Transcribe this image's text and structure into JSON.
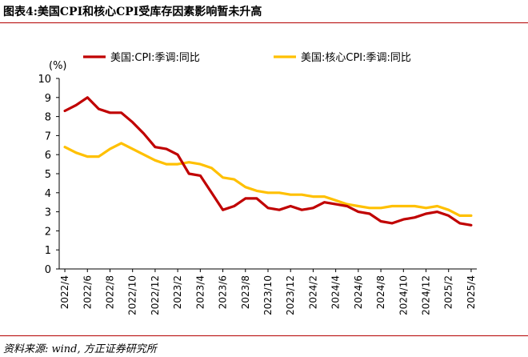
{
  "figure": {
    "title": "图表4:美国CPI和核心CPI受库存因素影响暂未升高",
    "source": "资料来源: wind, 方正证券研究所"
  },
  "chart_data": {
    "type": "line",
    "unit_label": "(%)",
    "ylim": [
      0,
      10
    ],
    "yticks": [
      0,
      1,
      2,
      3,
      4,
      5,
      6,
      7,
      8,
      9,
      10
    ],
    "grid": false,
    "legend_position": "top",
    "x": [
      "2022/4",
      "2022/5",
      "2022/6",
      "2022/7",
      "2022/8",
      "2022/9",
      "2022/10",
      "2022/11",
      "2022/12",
      "2023/1",
      "2023/2",
      "2023/3",
      "2023/4",
      "2023/5",
      "2023/6",
      "2023/7",
      "2023/8",
      "2023/9",
      "2023/10",
      "2023/11",
      "2023/12",
      "2024/1",
      "2024/2",
      "2024/3",
      "2024/4",
      "2024/5",
      "2024/6",
      "2024/7",
      "2024/8",
      "2024/9",
      "2024/10",
      "2024/11",
      "2024/12",
      "2025/1",
      "2025/2",
      "2025/3",
      "2025/4"
    ],
    "xtick_labels": [
      "2022/4",
      "2022/6",
      "2022/8",
      "2022/10",
      "2022/12",
      "2023/2",
      "2023/4",
      "2023/6",
      "2023/8",
      "2023/10",
      "2023/12",
      "2024/2",
      "2024/4",
      "2024/6",
      "2024/8",
      "2024/10",
      "2024/12",
      "2025/2",
      "2025/4"
    ],
    "series": [
      {
        "name": "美国:CPI:季调:同比",
        "color": "#c00000",
        "values": [
          8.3,
          8.6,
          9.0,
          8.4,
          8.2,
          8.2,
          7.7,
          7.1,
          6.4,
          6.3,
          6.0,
          5.0,
          4.9,
          4.0,
          3.1,
          3.3,
          3.7,
          3.7,
          3.2,
          3.1,
          3.3,
          3.1,
          3.2,
          3.5,
          3.4,
          3.3,
          3.0,
          2.9,
          2.5,
          2.4,
          2.6,
          2.7,
          2.9,
          3.0,
          2.8,
          2.4,
          2.3
        ]
      },
      {
        "name": "美国:核心CPI:季调:同比",
        "color": "#ffc000",
        "values": [
          6.4,
          6.1,
          5.9,
          5.9,
          6.3,
          6.6,
          6.3,
          6.0,
          5.7,
          5.5,
          5.5,
          5.6,
          5.5,
          5.3,
          4.8,
          4.7,
          4.3,
          4.1,
          4.0,
          4.0,
          3.9,
          3.9,
          3.8,
          3.8,
          3.6,
          3.4,
          3.3,
          3.2,
          3.2,
          3.3,
          3.3,
          3.3,
          3.2,
          3.3,
          3.1,
          2.8,
          2.8
        ]
      }
    ]
  }
}
